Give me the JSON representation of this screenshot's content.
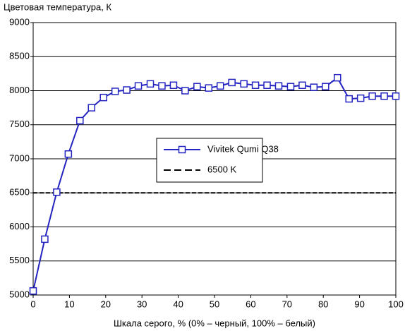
{
  "chart_data": {
    "type": "line",
    "y_label": "Цветовая температура, К",
    "x_label": "Шкала серого, % (0% – черный, 100% – белый)",
    "x": [
      0,
      3.2,
      6.5,
      9.7,
      12.9,
      16.1,
      19.4,
      22.6,
      25.8,
      29,
      32.3,
      35.5,
      38.7,
      41.9,
      45.2,
      48.4,
      51.6,
      54.8,
      58.1,
      61.3,
      64.5,
      67.7,
      71,
      74.2,
      77.4,
      80.6,
      83.9,
      87.1,
      90.3,
      93.5,
      96.8,
      100
    ],
    "series": [
      {
        "name": "Vivitek Qumi Q38",
        "color": "#2424c0",
        "values": [
          5060,
          5820,
          6510,
          7070,
          7560,
          7750,
          7900,
          7990,
          8010,
          8070,
          8100,
          8070,
          8080,
          8000,
          8060,
          8040,
          8070,
          8120,
          8100,
          8080,
          8080,
          8070,
          8060,
          8080,
          8050,
          8060,
          8190,
          7880,
          7890,
          7920,
          7920,
          7920
        ]
      }
    ],
    "reference_lines": [
      {
        "name": "6500 K",
        "value": 6500,
        "color": "#000000",
        "style": "dashed"
      }
    ],
    "xlim": [
      0,
      100
    ],
    "xticks": [
      0,
      10,
      20,
      30,
      40,
      50,
      60,
      70,
      80,
      90,
      100
    ],
    "ylim": [
      5000,
      9000
    ],
    "yticks": [
      5000,
      5500,
      6000,
      6500,
      7000,
      7500,
      8000,
      8500,
      9000
    ],
    "grid": true
  }
}
